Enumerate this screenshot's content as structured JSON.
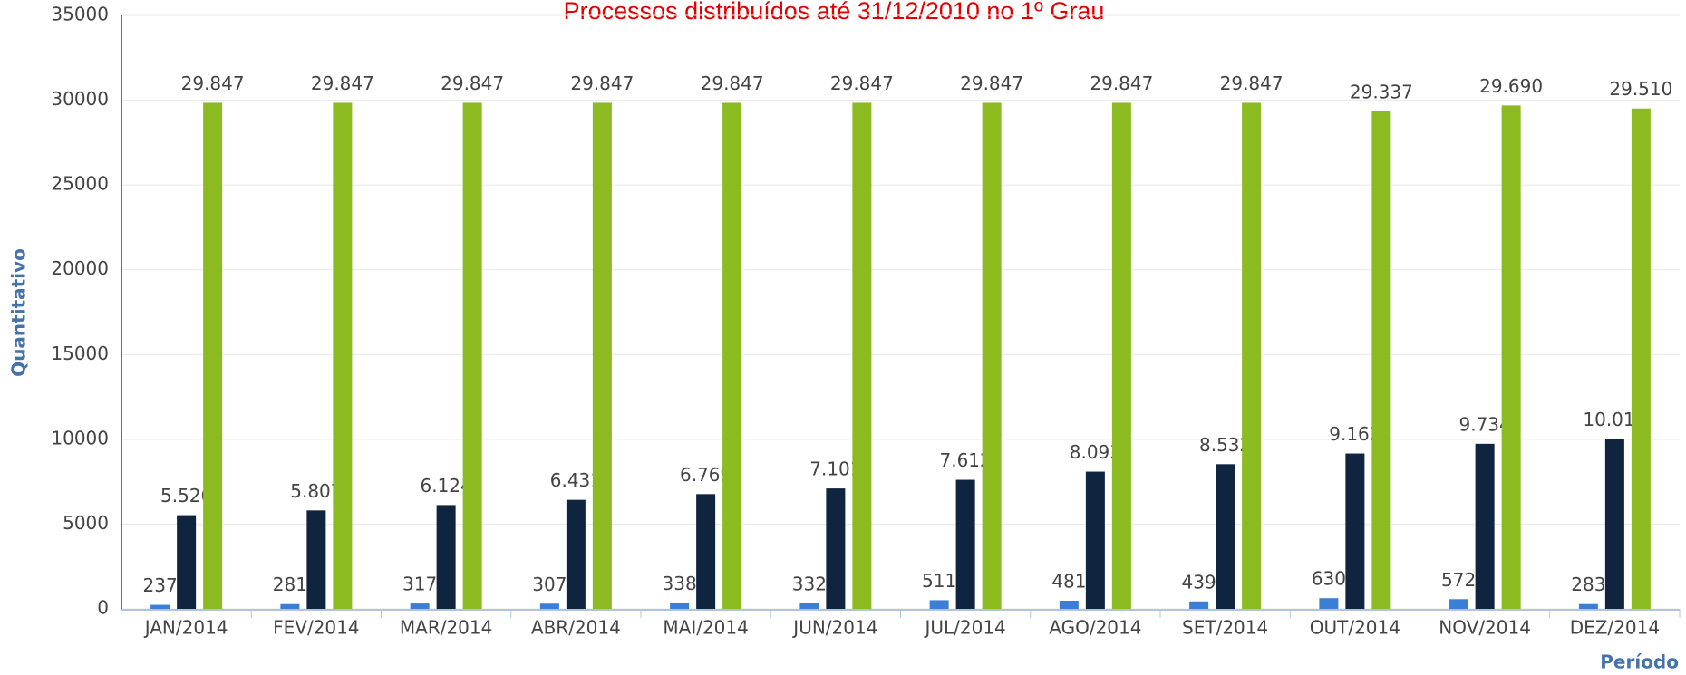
{
  "chart_data": {
    "type": "bar",
    "title": "Processos distribuídos até 31/12/2010 no 1º Grau",
    "x_label": "Período",
    "y_label": "Quantitativo",
    "categories": [
      "JAN/2014",
      "FEV/2014",
      "MAR/2014",
      "ABR/2014",
      "MAI/2014",
      "JUN/2014",
      "JUL/2014",
      "AGO/2014",
      "SET/2014",
      "OUT/2014",
      "NOV/2014",
      "DEZ/2014"
    ],
    "series": [
      {
        "color": "#3a7fd5",
        "values": [
          237,
          281,
          317,
          307,
          338,
          332,
          511,
          481,
          439,
          630,
          572,
          283
        ],
        "value_labels": [
          "237",
          "281",
          "317",
          "307",
          "338",
          "332",
          "511",
          "481",
          "439",
          "630",
          "572",
          "283"
        ]
      },
      {
        "color": "#0f243e",
        "values": [
          5526,
          5807,
          6124,
          6431,
          6769,
          7101,
          7612,
          8093,
          8532,
          9162,
          9734,
          10017
        ],
        "value_labels": [
          "5.526",
          "5.807",
          "6.124",
          "6.431",
          "6.769",
          "7.101",
          "7.612",
          "8.093",
          "8.532",
          "9.162",
          "9.734",
          "10.017"
        ]
      },
      {
        "color": "#8bbb21",
        "values": [
          29847,
          29847,
          29847,
          29847,
          29847,
          29847,
          29847,
          29847,
          29847,
          29337,
          29690,
          29510
        ],
        "value_labels": [
          "29.847",
          "29.847",
          "29.847",
          "29.847",
          "29.847",
          "29.847",
          "29.847",
          "29.847",
          "29.847",
          "29.337",
          "29.690",
          "29.510"
        ]
      }
    ],
    "ylim": [
      0,
      35000
    ],
    "yticks": [
      0,
      5000,
      10000,
      15000,
      20000,
      25000,
      30000,
      35000
    ],
    "grid": true
  }
}
